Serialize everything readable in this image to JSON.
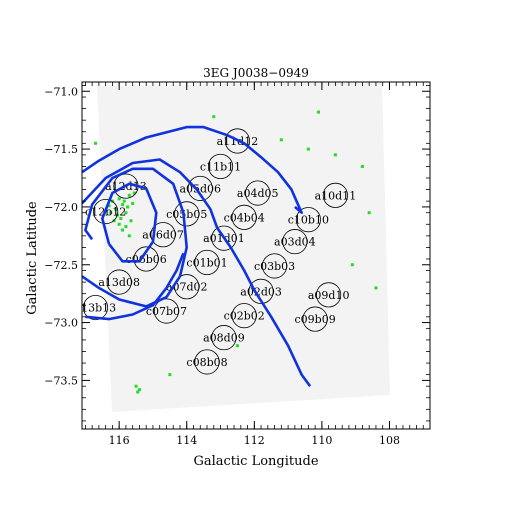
{
  "chart_data": {
    "type": "scatter",
    "title": "3EG J0038−0949",
    "xlabel": "Galactic Longitude",
    "ylabel": "Galactic Latitude",
    "xlim": [
      117.1,
      106.8
    ],
    "ylim": [
      -73.92,
      -70.92
    ],
    "x_reversed": true,
    "x_ticks": [
      "116",
      "114",
      "112",
      "110",
      "108"
    ],
    "x_tick_values": [
      116,
      114,
      112,
      110,
      108
    ],
    "y_ticks": [
      "−71.0",
      "−71.5",
      "−72.0",
      "−72.5",
      "−73.0",
      "−73.5"
    ],
    "y_tick_values": [
      -71.0,
      -71.5,
      -72.0,
      -72.5,
      -73.0,
      -73.5
    ],
    "grid": false,
    "field_radius_deg": 0.36,
    "fields": [
      {
        "label": "a11d12",
        "x": 112.5,
        "y": -71.43
      },
      {
        "label": "c11b11",
        "x": 113.0,
        "y": -71.65
      },
      {
        "label": "a12d13",
        "x": 115.8,
        "y": -71.82
      },
      {
        "label": "a05d06",
        "x": 113.6,
        "y": -71.84
      },
      {
        "label": "a04d05",
        "x": 111.9,
        "y": -71.88
      },
      {
        "label": "a10d11",
        "x": 109.6,
        "y": -71.9
      },
      {
        "label": "c12b12",
        "x": 116.4,
        "y": -72.04
      },
      {
        "label": "c05b05",
        "x": 114.0,
        "y": -72.06
      },
      {
        "label": "c04b04",
        "x": 112.3,
        "y": -72.09
      },
      {
        "label": "c10b10",
        "x": 110.4,
        "y": -72.11
      },
      {
        "label": "a06d07",
        "x": 114.7,
        "y": -72.24
      },
      {
        "label": "a01d01",
        "x": 112.9,
        "y": -72.27
      },
      {
        "label": "a03d04",
        "x": 110.8,
        "y": -72.3
      },
      {
        "label": "c06b06",
        "x": 115.2,
        "y": -72.45
      },
      {
        "label": "c01b01",
        "x": 113.4,
        "y": -72.48
      },
      {
        "label": "c03b03",
        "x": 111.4,
        "y": -72.51
      },
      {
        "label": "a13d08",
        "x": 116.0,
        "y": -72.65
      },
      {
        "label": "a07d02",
        "x": 114.0,
        "y": -72.69
      },
      {
        "label": "a02d03",
        "x": 111.8,
        "y": -72.73
      },
      {
        "label": "a09d10",
        "x": 109.8,
        "y": -72.76
      },
      {
        "label": "c13b13",
        "x": 116.7,
        "y": -72.87
      },
      {
        "label": "c07b07",
        "x": 114.6,
        "y": -72.9
      },
      {
        "label": "c02b02",
        "x": 112.3,
        "y": -72.94
      },
      {
        "label": "c09b09",
        "x": 110.2,
        "y": -72.97
      },
      {
        "label": "a08d09",
        "x": 112.9,
        "y": -73.13
      },
      {
        "label": "c08b08",
        "x": 113.4,
        "y": -73.34
      }
    ],
    "series": [
      {
        "values": [
          [
            117.1,
            -71.7
          ],
          [
            116.6,
            -71.6
          ],
          [
            116.0,
            -71.5
          ],
          [
            115.2,
            -71.4
          ],
          [
            114.0,
            -71.31
          ],
          [
            113.5,
            -71.31
          ],
          [
            112.8,
            -71.38
          ],
          [
            112.3,
            -71.45
          ],
          [
            111.8,
            -71.57
          ],
          [
            111.3,
            -71.7
          ],
          [
            110.9,
            -71.85
          ],
          [
            110.6,
            -72.05
          ],
          [
            110.8,
            -72.0
          ]
        ]
      },
      {
        "values": [
          [
            117.1,
            -71.97
          ],
          [
            116.4,
            -71.75
          ],
          [
            115.6,
            -71.62
          ],
          [
            114.8,
            -71.59
          ],
          [
            114.2,
            -71.7
          ],
          [
            113.7,
            -71.85
          ],
          [
            113.3,
            -72.02
          ],
          [
            113.1,
            -72.18
          ],
          [
            112.7,
            -72.35
          ],
          [
            112.3,
            -72.55
          ],
          [
            112.0,
            -72.72
          ],
          [
            111.5,
            -72.95
          ],
          [
            111.0,
            -73.2
          ],
          [
            110.6,
            -73.45
          ],
          [
            110.35,
            -73.55
          ]
        ]
      },
      {
        "values": [
          [
            117.1,
            -72.6
          ],
          [
            116.6,
            -72.7
          ],
          [
            116.0,
            -72.8
          ],
          [
            115.2,
            -72.86
          ],
          [
            114.6,
            -72.78
          ],
          [
            114.2,
            -72.6
          ],
          [
            114.0,
            -72.35
          ],
          [
            114.1,
            -72.05
          ],
          [
            114.4,
            -71.8
          ],
          [
            115.0,
            -71.67
          ],
          [
            115.6,
            -71.67
          ],
          [
            116.2,
            -71.75
          ],
          [
            116.8,
            -71.98
          ],
          [
            117.0,
            -72.2
          ],
          [
            116.8,
            -72.28
          ]
        ]
      },
      {
        "values": [
          [
            117.0,
            -72.95
          ],
          [
            116.3,
            -72.97
          ],
          [
            115.6,
            -72.93
          ],
          [
            115.0,
            -72.85
          ],
          [
            114.6,
            -72.7
          ],
          [
            114.3,
            -72.55
          ],
          [
            114.1,
            -72.4
          ]
        ]
      },
      {
        "values": [
          [
            116.3,
            -72.32
          ],
          [
            116.5,
            -72.1
          ],
          [
            116.2,
            -71.88
          ],
          [
            115.7,
            -71.8
          ],
          [
            115.2,
            -71.84
          ],
          [
            114.9,
            -72.05
          ],
          [
            115.0,
            -72.3
          ],
          [
            115.4,
            -72.47
          ],
          [
            115.9,
            -72.47
          ],
          [
            116.3,
            -72.32
          ]
        ]
      }
    ],
    "sources": [
      {
        "x": 116.0,
        "y": -71.93
      },
      {
        "x": 115.9,
        "y": -71.98
      },
      {
        "x": 116.1,
        "y": -72.02
      },
      {
        "x": 115.8,
        "y": -72.05
      },
      {
        "x": 116.2,
        "y": -71.95
      },
      {
        "x": 115.95,
        "y": -72.1
      },
      {
        "x": 115.7,
        "y": -71.9
      },
      {
        "x": 116.05,
        "y": -72.07
      },
      {
        "x": 115.85,
        "y": -71.95
      },
      {
        "x": 116.15,
        "y": -72.12
      },
      {
        "x": 115.75,
        "y": -72.0
      },
      {
        "x": 116.3,
        "y": -71.99
      },
      {
        "x": 115.6,
        "y": -71.97
      },
      {
        "x": 116.0,
        "y": -72.15
      },
      {
        "x": 115.9,
        "y": -72.2
      },
      {
        "x": 115.7,
        "y": -72.25
      },
      {
        "x": 115.55,
        "y": -71.88
      },
      {
        "x": 116.25,
        "y": -72.05
      },
      {
        "x": 115.65,
        "y": -72.12
      },
      {
        "x": 115.8,
        "y": -72.17
      },
      {
        "x": 116.7,
        "y": -71.45
      },
      {
        "x": 110.4,
        "y": -71.5
      },
      {
        "x": 109.6,
        "y": -71.55
      },
      {
        "x": 108.8,
        "y": -71.65
      },
      {
        "x": 108.6,
        "y": -72.05
      },
      {
        "x": 108.4,
        "y": -72.7
      },
      {
        "x": 109.1,
        "y": -72.5
      },
      {
        "x": 115.5,
        "y": -73.55
      },
      {
        "x": 115.4,
        "y": -73.58
      },
      {
        "x": 115.45,
        "y": -73.6
      },
      {
        "x": 114.5,
        "y": -73.45
      },
      {
        "x": 112.5,
        "y": -73.2
      },
      {
        "x": 111.2,
        "y": -71.42
      },
      {
        "x": 110.1,
        "y": -71.18
      },
      {
        "x": 113.2,
        "y": -71.22
      }
    ]
  }
}
